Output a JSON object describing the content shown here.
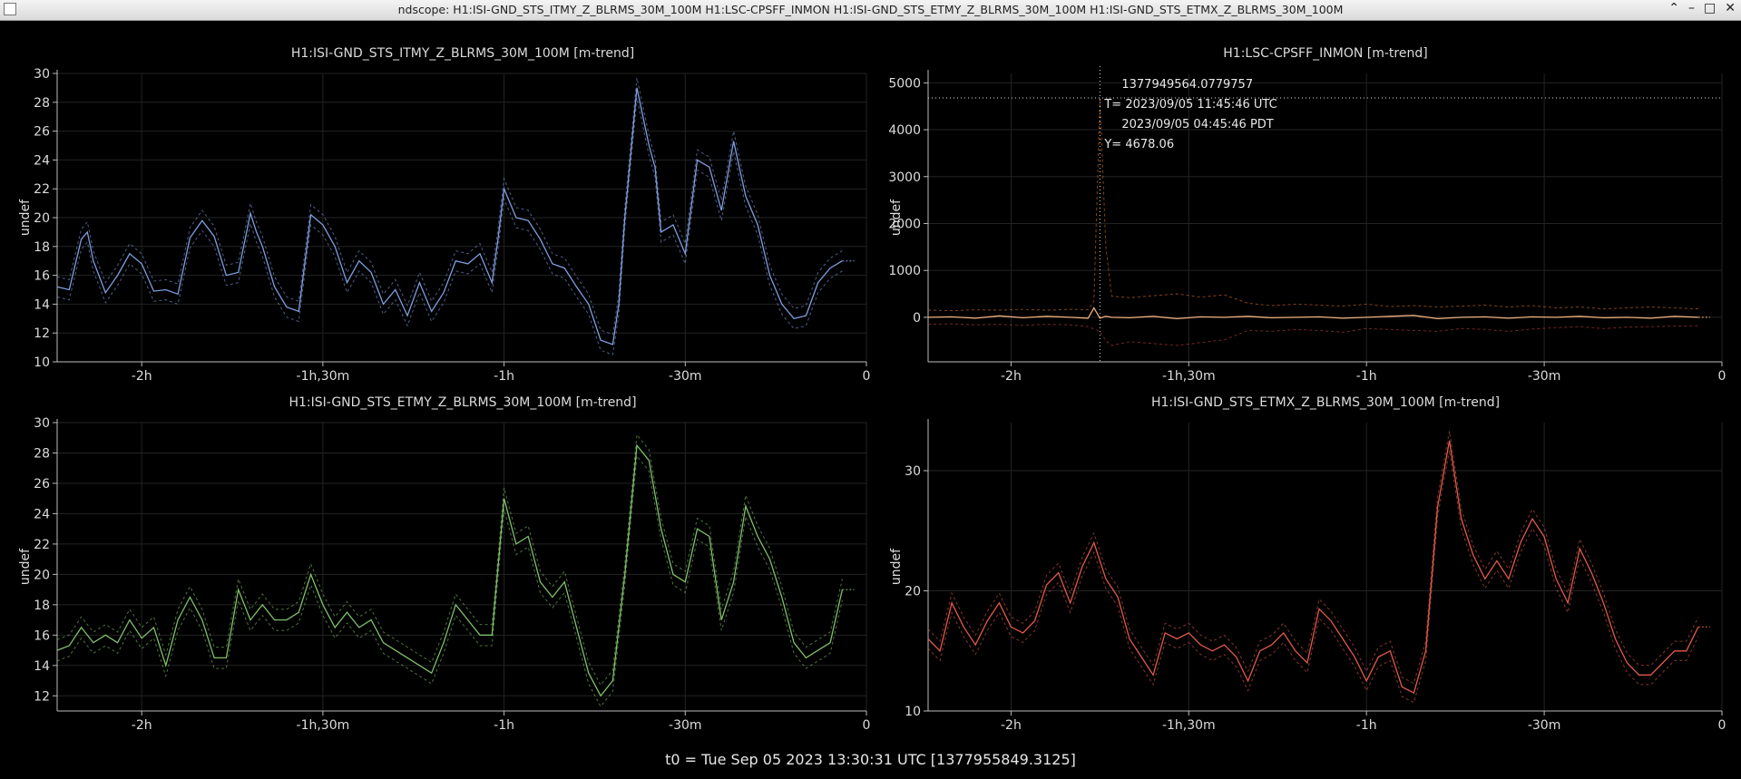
{
  "window": {
    "title": "ndscope: H1:ISI-GND_STS_ITMY_Z_BLRMS_30M_100M H1:LSC-CPSFF_INMON H1:ISI-GND_STS_ETMY_Z_BLRMS_30M_100M H1:ISI-GND_STS_ETMX_Z_BLRMS_30M_100M",
    "controls": [
      "⌃",
      "–",
      "□",
      "✕"
    ]
  },
  "t0_label": "t0 = Tue Sep 05 2023 13:30:31 UTC [1377955849.3125]",
  "cursor": {
    "gps": "1377949564.0779757",
    "utc": "T= 2023/09/05 11:45:46 UTC",
    "local": "2023/09/05 04:45:46 PDT",
    "y": "Y= 4678.06"
  },
  "chart_data": [
    {
      "type": "line",
      "title": "H1:ISI-GND_STS_ITMY_Z_BLRMS_30M_100M [m-trend]",
      "ylabel": "undef",
      "xlim": [
        -134,
        0
      ],
      "ylim": [
        10,
        30
      ],
      "yticks": [
        10,
        12,
        14,
        16,
        18,
        20,
        22,
        24,
        26,
        28,
        30
      ],
      "xticks": [
        {
          "v": -120,
          "label": "-2h"
        },
        {
          "v": -90,
          "label": "-1h,30m"
        },
        {
          "v": -60,
          "label": "-1h"
        },
        {
          "v": -30,
          "label": "-30m"
        },
        {
          "v": 0,
          "label": "0"
        }
      ],
      "color": "#7f9ee0",
      "band": 0.7,
      "x": [
        -134,
        -132,
        -130,
        -129,
        -128,
        -126,
        -124,
        -122,
        -120,
        -118,
        -116,
        -114,
        -112,
        -110,
        -108,
        -106,
        -104,
        -102,
        -101,
        -100,
        -98,
        -96,
        -94,
        -92,
        -90,
        -88,
        -86,
        -84,
        -82,
        -80,
        -78,
        -76,
        -74,
        -72,
        -70,
        -68,
        -66,
        -64,
        -62,
        -61,
        -60,
        -58,
        -56,
        -54,
        -52,
        -50,
        -48,
        -46,
        -44,
        -42,
        -41,
        -40,
        -38,
        -36,
        -35,
        -34,
        -32,
        -30,
        -28,
        -26,
        -24,
        -22,
        -20,
        -18,
        -16,
        -14,
        -12,
        -10,
        -8,
        -6,
        -4
      ],
      "values": [
        15.2,
        15.0,
        18.5,
        19.0,
        17.0,
        14.8,
        16.0,
        17.5,
        16.8,
        14.9,
        15.0,
        14.7,
        18.6,
        19.8,
        18.7,
        16.0,
        16.2,
        20.3,
        19.0,
        18.0,
        15.2,
        13.8,
        13.5,
        20.2,
        19.5,
        18.0,
        15.5,
        17.0,
        16.2,
        14.0,
        15.0,
        13.2,
        15.5,
        13.5,
        14.8,
        17.0,
        16.8,
        17.5,
        15.5,
        18.5,
        22.0,
        20.0,
        19.8,
        18.5,
        16.8,
        16.5,
        15.2,
        14.0,
        11.5,
        11.2,
        14.0,
        20.0,
        29.0,
        25.0,
        23.5,
        19.0,
        19.5,
        17.5,
        24.0,
        23.5,
        20.5,
        25.3,
        21.5,
        19.5,
        16.0,
        14.0,
        13.0,
        13.2,
        15.5,
        16.5,
        17.0
      ]
    },
    {
      "type": "line",
      "title": "H1:LSC-CPSFF_INMON [m-trend]",
      "ylabel": "undef",
      "xlim": [
        -134,
        0
      ],
      "ylim": [
        -950,
        5200
      ],
      "yticks": [
        0,
        1000,
        2000,
        3000,
        4000,
        5000
      ],
      "xticks": [
        {
          "v": -120,
          "label": "-2h"
        },
        {
          "v": -90,
          "label": "-1h,30m"
        },
        {
          "v": -60,
          "label": "-1h"
        },
        {
          "v": -30,
          "label": "-30m"
        },
        {
          "v": 0,
          "label": "0"
        }
      ],
      "color": "#f0b080",
      "min_color": "#c84040",
      "max_color": "#e07020",
      "cursor_x": -105.0,
      "cursor_y": 4678.06,
      "x": [
        -134,
        -130,
        -126,
        -122,
        -118,
        -114,
        -110,
        -107,
        -106,
        -105,
        -104,
        -103,
        -100,
        -96,
        -92,
        -88,
        -84,
        -80,
        -76,
        -72,
        -68,
        -64,
        -60,
        -56,
        -52,
        -48,
        -44,
        -40,
        -36,
        -32,
        -28,
        -24,
        -20,
        -16,
        -12,
        -8,
        -4
      ],
      "values": [
        0,
        10,
        -20,
        30,
        -10,
        20,
        0,
        -20,
        200,
        -20,
        20,
        0,
        -10,
        20,
        -30,
        10,
        0,
        20,
        -10,
        0,
        10,
        -20,
        0,
        20,
        40,
        -30,
        0,
        10,
        -20,
        10,
        0,
        20,
        -10,
        0,
        -20,
        20,
        0
      ],
      "min": [
        -150,
        -140,
        -160,
        -150,
        -170,
        -150,
        -160,
        -200,
        -250,
        -300,
        -500,
        -600,
        -520,
        -560,
        -600,
        -540,
        -480,
        -280,
        -300,
        -260,
        -280,
        -320,
        -240,
        -260,
        -280,
        -300,
        -240,
        -260,
        -300,
        -250,
        -220,
        -200,
        -240,
        -210,
        -200,
        -190,
        -180
      ],
      "max": [
        150,
        140,
        160,
        150,
        170,
        150,
        170,
        160,
        350,
        4680,
        1500,
        450,
        420,
        460,
        500,
        430,
        480,
        300,
        250,
        280,
        260,
        240,
        280,
        230,
        250,
        220,
        240,
        260,
        220,
        250,
        200,
        220,
        180,
        200,
        220,
        200,
        180
      ]
    },
    {
      "type": "line",
      "title": "H1:ISI-GND_STS_ETMY_Z_BLRMS_30M_100M [m-trend]",
      "ylabel": "undef",
      "xlim": [
        -134,
        0
      ],
      "ylim": [
        11,
        30
      ],
      "yticks": [
        12,
        14,
        16,
        18,
        20,
        22,
        24,
        26,
        28,
        30
      ],
      "xticks": [
        {
          "v": -120,
          "label": "-2h"
        },
        {
          "v": -90,
          "label": "-1h,30m"
        },
        {
          "v": -60,
          "label": "-1h"
        },
        {
          "v": -30,
          "label": "-30m"
        },
        {
          "v": 0,
          "label": "0"
        }
      ],
      "color": "#7fc06a",
      "band": 0.7,
      "x": [
        -134,
        -132,
        -130,
        -128,
        -126,
        -124,
        -122,
        -120,
        -118,
        -116,
        -114,
        -112,
        -110,
        -108,
        -106,
        -104,
        -102,
        -100,
        -98,
        -96,
        -94,
        -92,
        -90,
        -88,
        -86,
        -84,
        -82,
        -80,
        -78,
        -76,
        -74,
        -72,
        -70,
        -68,
        -66,
        -64,
        -62,
        -60,
        -58,
        -56,
        -54,
        -52,
        -50,
        -48,
        -46,
        -44,
        -42,
        -40,
        -38,
        -36,
        -34,
        -32,
        -30,
        -28,
        -26,
        -24,
        -22,
        -20,
        -18,
        -16,
        -14,
        -12,
        -10,
        -8,
        -6,
        -4
      ],
      "values": [
        15.0,
        15.3,
        16.5,
        15.5,
        16.0,
        15.5,
        17.0,
        15.8,
        16.5,
        14.0,
        17.0,
        18.5,
        17.0,
        14.5,
        14.5,
        19.0,
        17.0,
        18.0,
        17.0,
        17.0,
        17.5,
        20.0,
        18.0,
        16.5,
        17.5,
        16.5,
        17.0,
        15.5,
        15.0,
        14.5,
        14.0,
        13.5,
        15.5,
        18.0,
        17.0,
        16.0,
        16.0,
        25.0,
        22.0,
        22.5,
        19.5,
        18.5,
        19.5,
        16.5,
        13.5,
        12.0,
        13.0,
        20.0,
        28.5,
        27.5,
        23.0,
        20.0,
        19.5,
        23.0,
        22.5,
        17.0,
        19.5,
        24.5,
        22.5,
        21.0,
        18.5,
        15.5,
        14.5,
        15.0,
        15.5,
        19.0
      ]
    },
    {
      "type": "line",
      "title": "H1:ISI-GND_STS_ETMX_Z_BLRMS_30M_100M [m-trend]",
      "ylabel": "undef",
      "xlim": [
        -134,
        0
      ],
      "ylim": [
        10,
        34
      ],
      "yticks": [
        10,
        20,
        30
      ],
      "xticks": [
        {
          "v": -120,
          "label": "-2h"
        },
        {
          "v": -90,
          "label": "-1h,30m"
        },
        {
          "v": -60,
          "label": "-1h"
        },
        {
          "v": -30,
          "label": "-30m"
        },
        {
          "v": 0,
          "label": "0"
        }
      ],
      "color": "#e05a4a",
      "band": 0.8,
      "x": [
        -134,
        -132,
        -130,
        -128,
        -126,
        -124,
        -122,
        -120,
        -118,
        -116,
        -114,
        -112,
        -110,
        -108,
        -106,
        -104,
        -102,
        -100,
        -98,
        -96,
        -94,
        -92,
        -90,
        -88,
        -86,
        -84,
        -82,
        -80,
        -78,
        -76,
        -74,
        -72,
        -70,
        -68,
        -66,
        -64,
        -62,
        -60,
        -58,
        -56,
        -54,
        -52,
        -50,
        -48,
        -46,
        -44,
        -42,
        -40,
        -38,
        -36,
        -34,
        -32,
        -30,
        -28,
        -26,
        -24,
        -22,
        -20,
        -18,
        -16,
        -14,
        -12,
        -10,
        -8,
        -6,
        -4
      ],
      "values": [
        16.0,
        15.0,
        19.0,
        17.0,
        15.5,
        17.5,
        19.0,
        17.0,
        16.5,
        17.5,
        20.5,
        21.5,
        19.0,
        22.0,
        24.0,
        21.0,
        19.5,
        16.0,
        14.5,
        13.0,
        16.5,
        16.0,
        16.5,
        15.5,
        15.0,
        15.5,
        14.5,
        12.5,
        15.0,
        15.5,
        16.5,
        15.0,
        14.0,
        18.5,
        17.5,
        16.0,
        14.5,
        12.5,
        14.5,
        15.0,
        12.0,
        11.5,
        15.0,
        27.0,
        32.5,
        26.0,
        23.0,
        21.0,
        22.5,
        21.0,
        24.0,
        26.0,
        24.5,
        21.0,
        19.0,
        23.5,
        21.5,
        19.0,
        16.0,
        14.0,
        13.0,
        13.0,
        14.0,
        15.0,
        15.0,
        17.0
      ]
    }
  ]
}
